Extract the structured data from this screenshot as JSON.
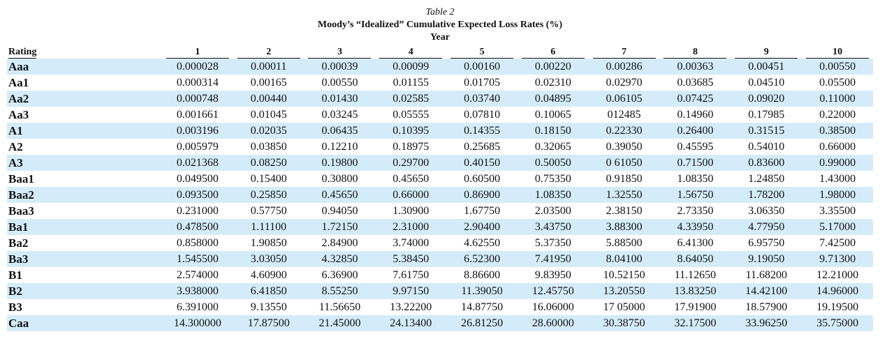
{
  "table": {
    "title": "Table 2",
    "subtitle": "Moody’s “Idealized” Cumulative Expected Loss Rates (%)",
    "year_label": "Year",
    "columns": [
      "Rating",
      "1",
      "2",
      "3",
      "4",
      "5",
      "6",
      "7",
      "8",
      "9",
      "10"
    ],
    "rows": [
      [
        "Aaa",
        "0.000028",
        "0.00011",
        "0.00039",
        "0.00099",
        "0.00160",
        "0.00220",
        "0.00286",
        "0.00363",
        "0.00451",
        "0.00550"
      ],
      [
        "Aa1",
        "0.000314",
        "0.00165",
        "0.00550",
        "0.01155",
        "0.01705",
        "0.02310",
        "0.02970",
        "0.03685",
        "0.04510",
        "0.05500"
      ],
      [
        "Aa2",
        "0.000748",
        "0.00440",
        "0.01430",
        "0.02585",
        "0.03740",
        "0.04895",
        "0.06105",
        "0.07425",
        "0.09020",
        "0.11000"
      ],
      [
        "Aa3",
        "0.001661",
        "0.01045",
        "0.03245",
        "0.05555",
        "0.07810",
        "0.10065",
        "012485",
        "0.14960",
        "0.17985",
        "0.22000"
      ],
      [
        "A1",
        "0.003196",
        "0.02035",
        "0.06435",
        "0.10395",
        "0.14355",
        "0.18150",
        "0.22330",
        "0.26400",
        "0.31515",
        "0.38500"
      ],
      [
        "A2",
        "0.005979",
        "0.03850",
        "0.12210",
        "0.18975",
        "0.25685",
        "0.32065",
        "0.39050",
        "0.45595",
        "0.54010",
        "0.66000"
      ],
      [
        "A3",
        "0.021368",
        "0.08250",
        "0.19800",
        "0.29700",
        "0.40150",
        "0.50050",
        "0 61050",
        "0.71500",
        "0.83600",
        "0.99000"
      ],
      [
        "Baa1",
        "0.049500",
        "0.15400",
        "0.30800",
        "0.45650",
        "0.60500",
        "0.75350",
        "0.91850",
        "1.08350",
        "1.24850",
        "1.43000"
      ],
      [
        "Baa2",
        "0.093500",
        "0.25850",
        "0.45650",
        "0.66000",
        "0.86900",
        "1.08350",
        "1.32550",
        "1.56750",
        "1.78200",
        "1.98000"
      ],
      [
        "Baa3",
        "0.231000",
        "0.57750",
        "0.94050",
        "1.30900",
        "1.67750",
        "2.03500",
        "2.38150",
        "2.73350",
        "3.06350",
        "3.35500"
      ],
      [
        "Ba1",
        "0.478500",
        "1.11100",
        "1.72150",
        "2.31000",
        "2.90400",
        "3.43750",
        "3.88300",
        "4.33950",
        "4.77950",
        "5.17000"
      ],
      [
        "Ba2",
        "0.858000",
        "1.90850",
        "2.84900",
        "3.74000",
        "4.62550",
        "5.37350",
        "5.88500",
        "6.41300",
        "6.95750",
        "7.42500"
      ],
      [
        "Ba3",
        "1.545500",
        "3.03050",
        "4.32850",
        "5.38450",
        "6.52300",
        "7.41950",
        "8.04100",
        "8.64050",
        "9.19050",
        "9.71300"
      ],
      [
        "B1",
        "2.574000",
        "4.60900",
        "6.36900",
        "7.61750",
        "8.86600",
        "9.83950",
        "10.52150",
        "11.12650",
        "11.68200",
        "12.21000"
      ],
      [
        "B2",
        "3.938000",
        "6.41850",
        "8.55250",
        "9.97150",
        "11.39050",
        "12.45750",
        "13.20550",
        "13.83250",
        "14.42100",
        "14.96000"
      ],
      [
        "B3",
        "6.391000",
        "9.13550",
        "11.56650",
        "13.22200",
        "14.87750",
        "16.06000",
        "17 05000",
        "17.91900",
        "18.57900",
        "19.19500"
      ],
      [
        "Caa",
        "14.300000",
        "17.87500",
        "21.45000",
        "24.13400",
        "26.81250",
        "28.60000",
        "30.38750",
        "32.17500",
        "33.96250",
        "35.75000"
      ]
    ]
  }
}
